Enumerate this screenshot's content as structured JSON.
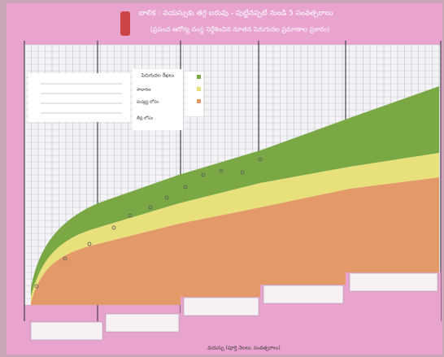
{
  "poster": {
    "title": "బాలిక : వయస్సుకు తగ్గ బరువు - పుట్టినప్పటి నుండి 5 సంవత్సరాలు",
    "subtitle": "(ప్రపంచ ఆరోగ్య సంస్థ నిర్దేశించిన నూతన పెరుగుదల ప్రమాణాల ప్రకారం)",
    "legend_title": "పెరుగుదల రేఖలు",
    "legend_items": [
      "సాధారణ",
      "మధ్యస్థ లోపం",
      "తీవ్ర లోపం"
    ],
    "x_axis_label": "వయస్సు (పూర్తి నెలలు, సంవత్సరాలు)"
  }
}
